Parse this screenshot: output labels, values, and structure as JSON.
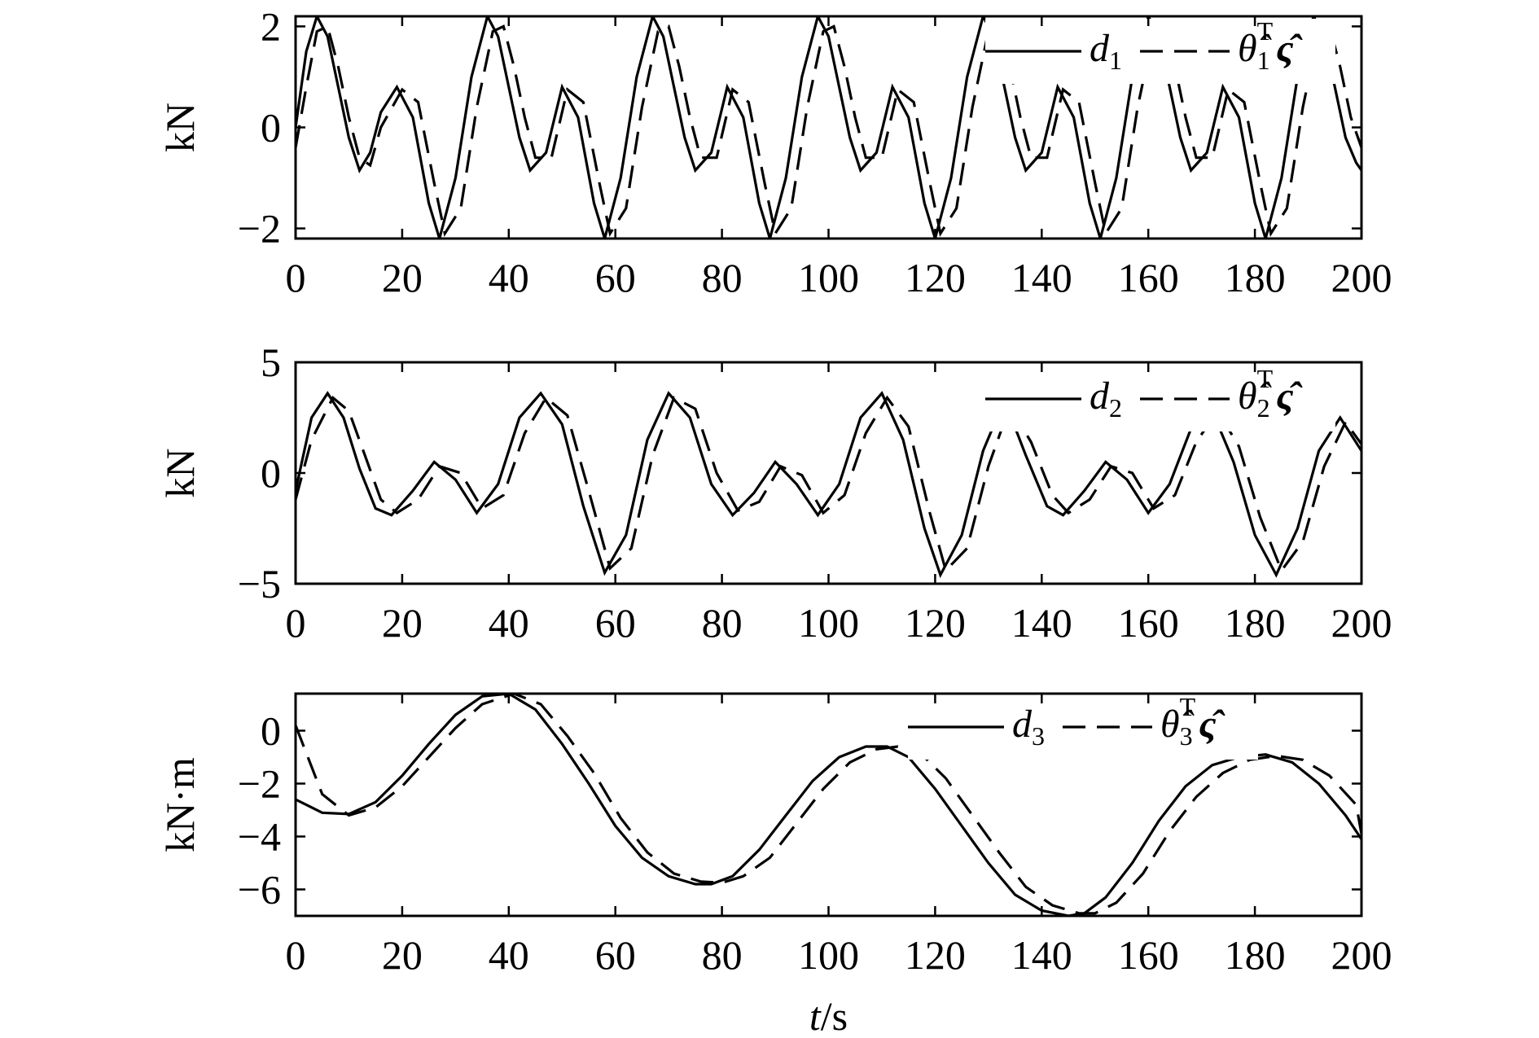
{
  "chart_data": [
    {
      "type": "line",
      "ylabel": "kN",
      "xlim": [
        0,
        200
      ],
      "ylim": [
        -2.2,
        2.2
      ],
      "xticks": [
        0,
        20,
        40,
        60,
        80,
        100,
        120,
        140,
        160,
        180,
        200
      ],
      "yticks": [
        -2,
        0,
        2
      ],
      "yticklabels": [
        "−2",
        "0",
        "2"
      ],
      "legend": {
        "position": "top-right",
        "entries": [
          {
            "style": "solid",
            "main": "d",
            "sub": "1"
          },
          {
            "style": "dashed",
            "main": "θ̂",
            "sub": "1",
            "sup": "T",
            "tail": "ς̂"
          }
        ]
      },
      "series": [
        {
          "style": "solid",
          "x": [
            0,
            2,
            4,
            6,
            8,
            10,
            12,
            14,
            16,
            19,
            22,
            25,
            27,
            30,
            33,
            36,
            38,
            40,
            42,
            44,
            47,
            50,
            53,
            56,
            58,
            61,
            64,
            67,
            69,
            71,
            73,
            75,
            78,
            81,
            84,
            87,
            89,
            92,
            95,
            98,
            100,
            102,
            104,
            106,
            109,
            112,
            115,
            118,
            120,
            123,
            126,
            129,
            131,
            133,
            135,
            137,
            140,
            143,
            146,
            149,
            151,
            154,
            157,
            160,
            162,
            164,
            166,
            168,
            171,
            174,
            177,
            180,
            182,
            185,
            188,
            191,
            193,
            195,
            197,
            199,
            200
          ],
          "y": [
            0,
            1.5,
            2.2,
            1.8,
            0.8,
            -0.2,
            -0.85,
            -0.5,
            0.3,
            0.8,
            0.2,
            -1.5,
            -2.2,
            -1.0,
            1.0,
            2.2,
            1.8,
            0.8,
            -0.2,
            -0.85,
            -0.5,
            0.8,
            0.2,
            -1.5,
            -2.2,
            -1.0,
            1.0,
            2.2,
            1.8,
            0.8,
            -0.2,
            -0.85,
            -0.5,
            0.8,
            0.2,
            -1.5,
            -2.2,
            -1.0,
            1.0,
            2.2,
            1.8,
            0.8,
            -0.2,
            -0.85,
            -0.5,
            0.8,
            0.2,
            -1.5,
            -2.2,
            -1.0,
            1.0,
            2.2,
            1.8,
            0.8,
            -0.2,
            -0.85,
            -0.5,
            0.8,
            0.2,
            -1.5,
            -2.2,
            -1.0,
            1.0,
            2.2,
            1.8,
            0.8,
            -0.2,
            -0.85,
            -0.5,
            0.8,
            0.2,
            -1.5,
            -2.2,
            -1.0,
            1.0,
            2.2,
            1.8,
            0.8,
            -0.2,
            -0.7,
            -0.85
          ]
        },
        {
          "style": "dashed",
          "x": [
            0,
            2,
            4,
            6,
            8,
            10,
            12,
            14,
            16,
            20,
            23,
            26,
            28,
            31,
            34,
            37,
            39,
            41,
            43,
            45,
            48,
            51,
            54,
            57,
            59,
            62,
            65,
            68,
            70,
            72,
            74,
            76,
            79,
            82,
            85,
            88,
            90,
            93,
            96,
            99,
            101,
            103,
            105,
            107,
            110,
            113,
            116,
            119,
            121,
            124,
            127,
            130,
            132,
            134,
            136,
            138,
            141,
            144,
            147,
            150,
            152,
            155,
            158,
            161,
            163,
            165,
            167,
            169,
            172,
            175,
            178,
            181,
            183,
            186,
            189,
            192,
            194,
            196,
            198,
            200
          ],
          "y": [
            -0.4,
            0.8,
            1.9,
            2.0,
            1.2,
            0.2,
            -0.6,
            -0.75,
            0.0,
            0.75,
            0.5,
            -1.1,
            -2.1,
            -1.6,
            0.4,
            1.9,
            2.0,
            1.2,
            0.2,
            -0.6,
            -0.6,
            0.75,
            0.5,
            -1.1,
            -2.1,
            -1.6,
            0.4,
            1.9,
            2.0,
            1.2,
            0.2,
            -0.6,
            -0.6,
            0.75,
            0.5,
            -1.1,
            -2.1,
            -1.6,
            0.4,
            1.9,
            2.0,
            1.2,
            0.2,
            -0.6,
            -0.6,
            0.75,
            0.5,
            -1.1,
            -2.1,
            -1.6,
            0.4,
            1.9,
            2.0,
            1.2,
            0.2,
            -0.6,
            -0.6,
            0.75,
            0.5,
            -1.1,
            -2.1,
            -1.6,
            0.4,
            1.9,
            2.0,
            1.2,
            0.2,
            -0.6,
            -0.6,
            0.75,
            0.5,
            -1.1,
            -2.1,
            -1.6,
            0.4,
            1.9,
            2.0,
            1.2,
            0.2,
            -0.4
          ]
        }
      ]
    },
    {
      "type": "line",
      "ylabel": "kN",
      "xlim": [
        0,
        200
      ],
      "ylim": [
        -5,
        5
      ],
      "xticks": [
        0,
        20,
        40,
        60,
        80,
        100,
        120,
        140,
        160,
        180,
        200
      ],
      "yticks": [
        -5,
        0,
        5
      ],
      "yticklabels": [
        "−5",
        "0",
        "5"
      ],
      "legend": {
        "position": "top-right",
        "entries": [
          {
            "style": "solid",
            "main": "d",
            "sub": "2"
          },
          {
            "style": "dashed",
            "main": "θ̂",
            "sub": "2",
            "sup": "T",
            "tail": "ς̂"
          }
        ]
      },
      "series": [
        {
          "style": "solid",
          "x": [
            0,
            3,
            6,
            9,
            12,
            15,
            18,
            22,
            26,
            30,
            34,
            38,
            42,
            46,
            50,
            54,
            58,
            62,
            66,
            70,
            74,
            78,
            82,
            86,
            90,
            94,
            98,
            102,
            106,
            110,
            114,
            118,
            121,
            125,
            129,
            133,
            137,
            141,
            144,
            148,
            152,
            156,
            160,
            164,
            168,
            172,
            176,
            180,
            184,
            188,
            192,
            196,
            200
          ],
          "y": [
            -0.8,
            2.5,
            3.6,
            2.5,
            0.2,
            -1.6,
            -1.9,
            -0.8,
            0.5,
            -0.3,
            -1.8,
            -0.5,
            2.5,
            3.6,
            2.2,
            -1.5,
            -4.5,
            -2.8,
            1.5,
            3.6,
            2.5,
            -0.5,
            -1.9,
            -0.9,
            0.5,
            -0.5,
            -1.9,
            -0.5,
            2.5,
            3.6,
            1.5,
            -2.5,
            -4.6,
            -2.8,
            1.0,
            3.3,
            0.8,
            -1.5,
            -1.9,
            -0.8,
            0.5,
            -0.3,
            -1.8,
            -0.5,
            2.0,
            2.8,
            0.5,
            -2.8,
            -4.6,
            -2.5,
            1.0,
            2.5,
            1.0
          ]
        },
        {
          "style": "dashed",
          "x": [
            0,
            3,
            7,
            10,
            13,
            16,
            19,
            23,
            27,
            31,
            35,
            39,
            43,
            47,
            51,
            55,
            59,
            63,
            67,
            71,
            75,
            79,
            83,
            87,
            91,
            95,
            99,
            103,
            107,
            111,
            115,
            119,
            122,
            126,
            130,
            134,
            138,
            142,
            145,
            149,
            153,
            157,
            161,
            165,
            169,
            173,
            177,
            181,
            185,
            189,
            193,
            197,
            200
          ],
          "y": [
            -1.2,
            1.5,
            3.4,
            2.8,
            0.8,
            -1.2,
            -1.8,
            -1.2,
            0.3,
            0.0,
            -1.6,
            -1.0,
            1.8,
            3.4,
            2.6,
            -0.8,
            -4.3,
            -3.4,
            0.8,
            3.4,
            2.9,
            0.0,
            -1.7,
            -1.3,
            0.3,
            -0.1,
            -1.8,
            -1.0,
            1.8,
            3.4,
            2.1,
            -1.8,
            -4.4,
            -3.4,
            0.3,
            3.0,
            1.4,
            -1.0,
            -1.8,
            -1.2,
            0.3,
            0.0,
            -1.6,
            -1.0,
            1.4,
            2.8,
            1.2,
            -2.0,
            -4.4,
            -3.1,
            0.3,
            2.3,
            1.3
          ]
        }
      ]
    },
    {
      "type": "line",
      "ylabel": "kN·m",
      "xlabel": "t/s",
      "xlim": [
        0,
        200
      ],
      "ylim": [
        -7,
        1.4
      ],
      "xticks": [
        0,
        20,
        40,
        60,
        80,
        100,
        120,
        140,
        160,
        180,
        200
      ],
      "yticks": [
        -6,
        -4,
        -2,
        0
      ],
      "yticklabels": [
        "−6",
        "−4",
        "−2",
        "0"
      ],
      "legend": {
        "position": "top-right",
        "entries": [
          {
            "style": "solid",
            "main": "d",
            "sub": "3"
          },
          {
            "style": "dashed",
            "main": "θ̂",
            "sub": "3",
            "sup": "T",
            "tail": "ς̂"
          }
        ]
      },
      "series": [
        {
          "style": "solid",
          "x": [
            0,
            5,
            10,
            15,
            20,
            25,
            30,
            35,
            40,
            45,
            50,
            55,
            60,
            65,
            70,
            75,
            78,
            82,
            87,
            92,
            97,
            102,
            107,
            111,
            115,
            120,
            125,
            130,
            135,
            140,
            145,
            148,
            152,
            157,
            162,
            167,
            172,
            177,
            182,
            187,
            192,
            197,
            200
          ],
          "y": [
            -2.6,
            -3.1,
            -3.15,
            -2.7,
            -1.7,
            -0.5,
            0.6,
            1.3,
            1.4,
            0.8,
            -0.5,
            -2.0,
            -3.6,
            -4.8,
            -5.5,
            -5.8,
            -5.8,
            -5.5,
            -4.5,
            -3.2,
            -1.9,
            -1.0,
            -0.6,
            -0.6,
            -1.0,
            -2.2,
            -3.6,
            -5.0,
            -6.2,
            -6.8,
            -7.0,
            -6.9,
            -6.3,
            -5.0,
            -3.4,
            -2.1,
            -1.3,
            -1.0,
            -0.9,
            -1.2,
            -2.0,
            -3.2,
            -4.1
          ]
        },
        {
          "style": "dashed",
          "x": [
            0,
            5,
            10,
            15,
            20,
            25,
            30,
            35,
            41,
            46,
            51,
            56,
            61,
            66,
            71,
            76,
            80,
            84,
            89,
            94,
            99,
            104,
            109,
            113,
            117,
            122,
            127,
            132,
            137,
            142,
            147,
            150,
            154,
            159,
            164,
            169,
            174,
            179,
            184,
            189,
            194,
            199,
            200
          ],
          "y": [
            0.2,
            -2.4,
            -3.2,
            -2.9,
            -2.1,
            -1.0,
            0.1,
            1.0,
            1.4,
            1.0,
            -0.2,
            -1.6,
            -3.3,
            -4.6,
            -5.4,
            -5.7,
            -5.75,
            -5.5,
            -4.8,
            -3.5,
            -2.2,
            -1.2,
            -0.7,
            -0.6,
            -0.8,
            -1.8,
            -3.2,
            -4.6,
            -5.9,
            -6.6,
            -6.9,
            -6.9,
            -6.5,
            -5.4,
            -3.8,
            -2.5,
            -1.6,
            -1.1,
            -0.95,
            -1.1,
            -1.7,
            -2.8,
            -3.9
          ]
        }
      ]
    }
  ]
}
